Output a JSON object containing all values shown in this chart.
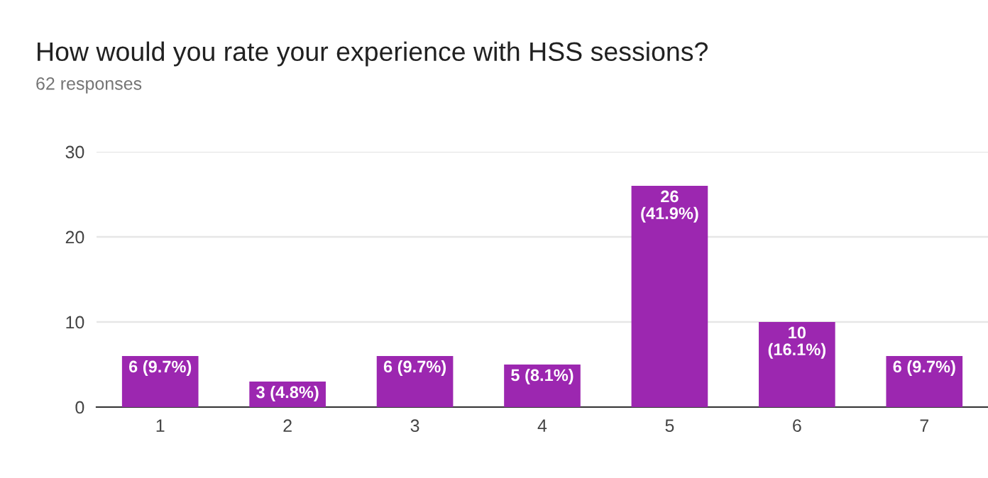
{
  "chart_data": {
    "type": "bar",
    "title": "How would you rate your experience with HSS sessions?",
    "subtitle": "62 responses",
    "categories": [
      "1",
      "2",
      "3",
      "4",
      "5",
      "6",
      "7"
    ],
    "values": [
      6,
      3,
      6,
      5,
      26,
      10,
      6
    ],
    "value_labels": [
      "6 (9.7%)",
      "3 (4.8%)",
      "6 (9.7%)",
      "5 (8.1%)",
      "26\n(41.9%)",
      "10\n(16.1%)",
      "6 (9.7%)"
    ],
    "color": "#9c27b0",
    "ylim": [
      0,
      30
    ],
    "yticks": [
      0,
      10,
      20,
      30
    ],
    "grid": "y",
    "legend": false
  }
}
